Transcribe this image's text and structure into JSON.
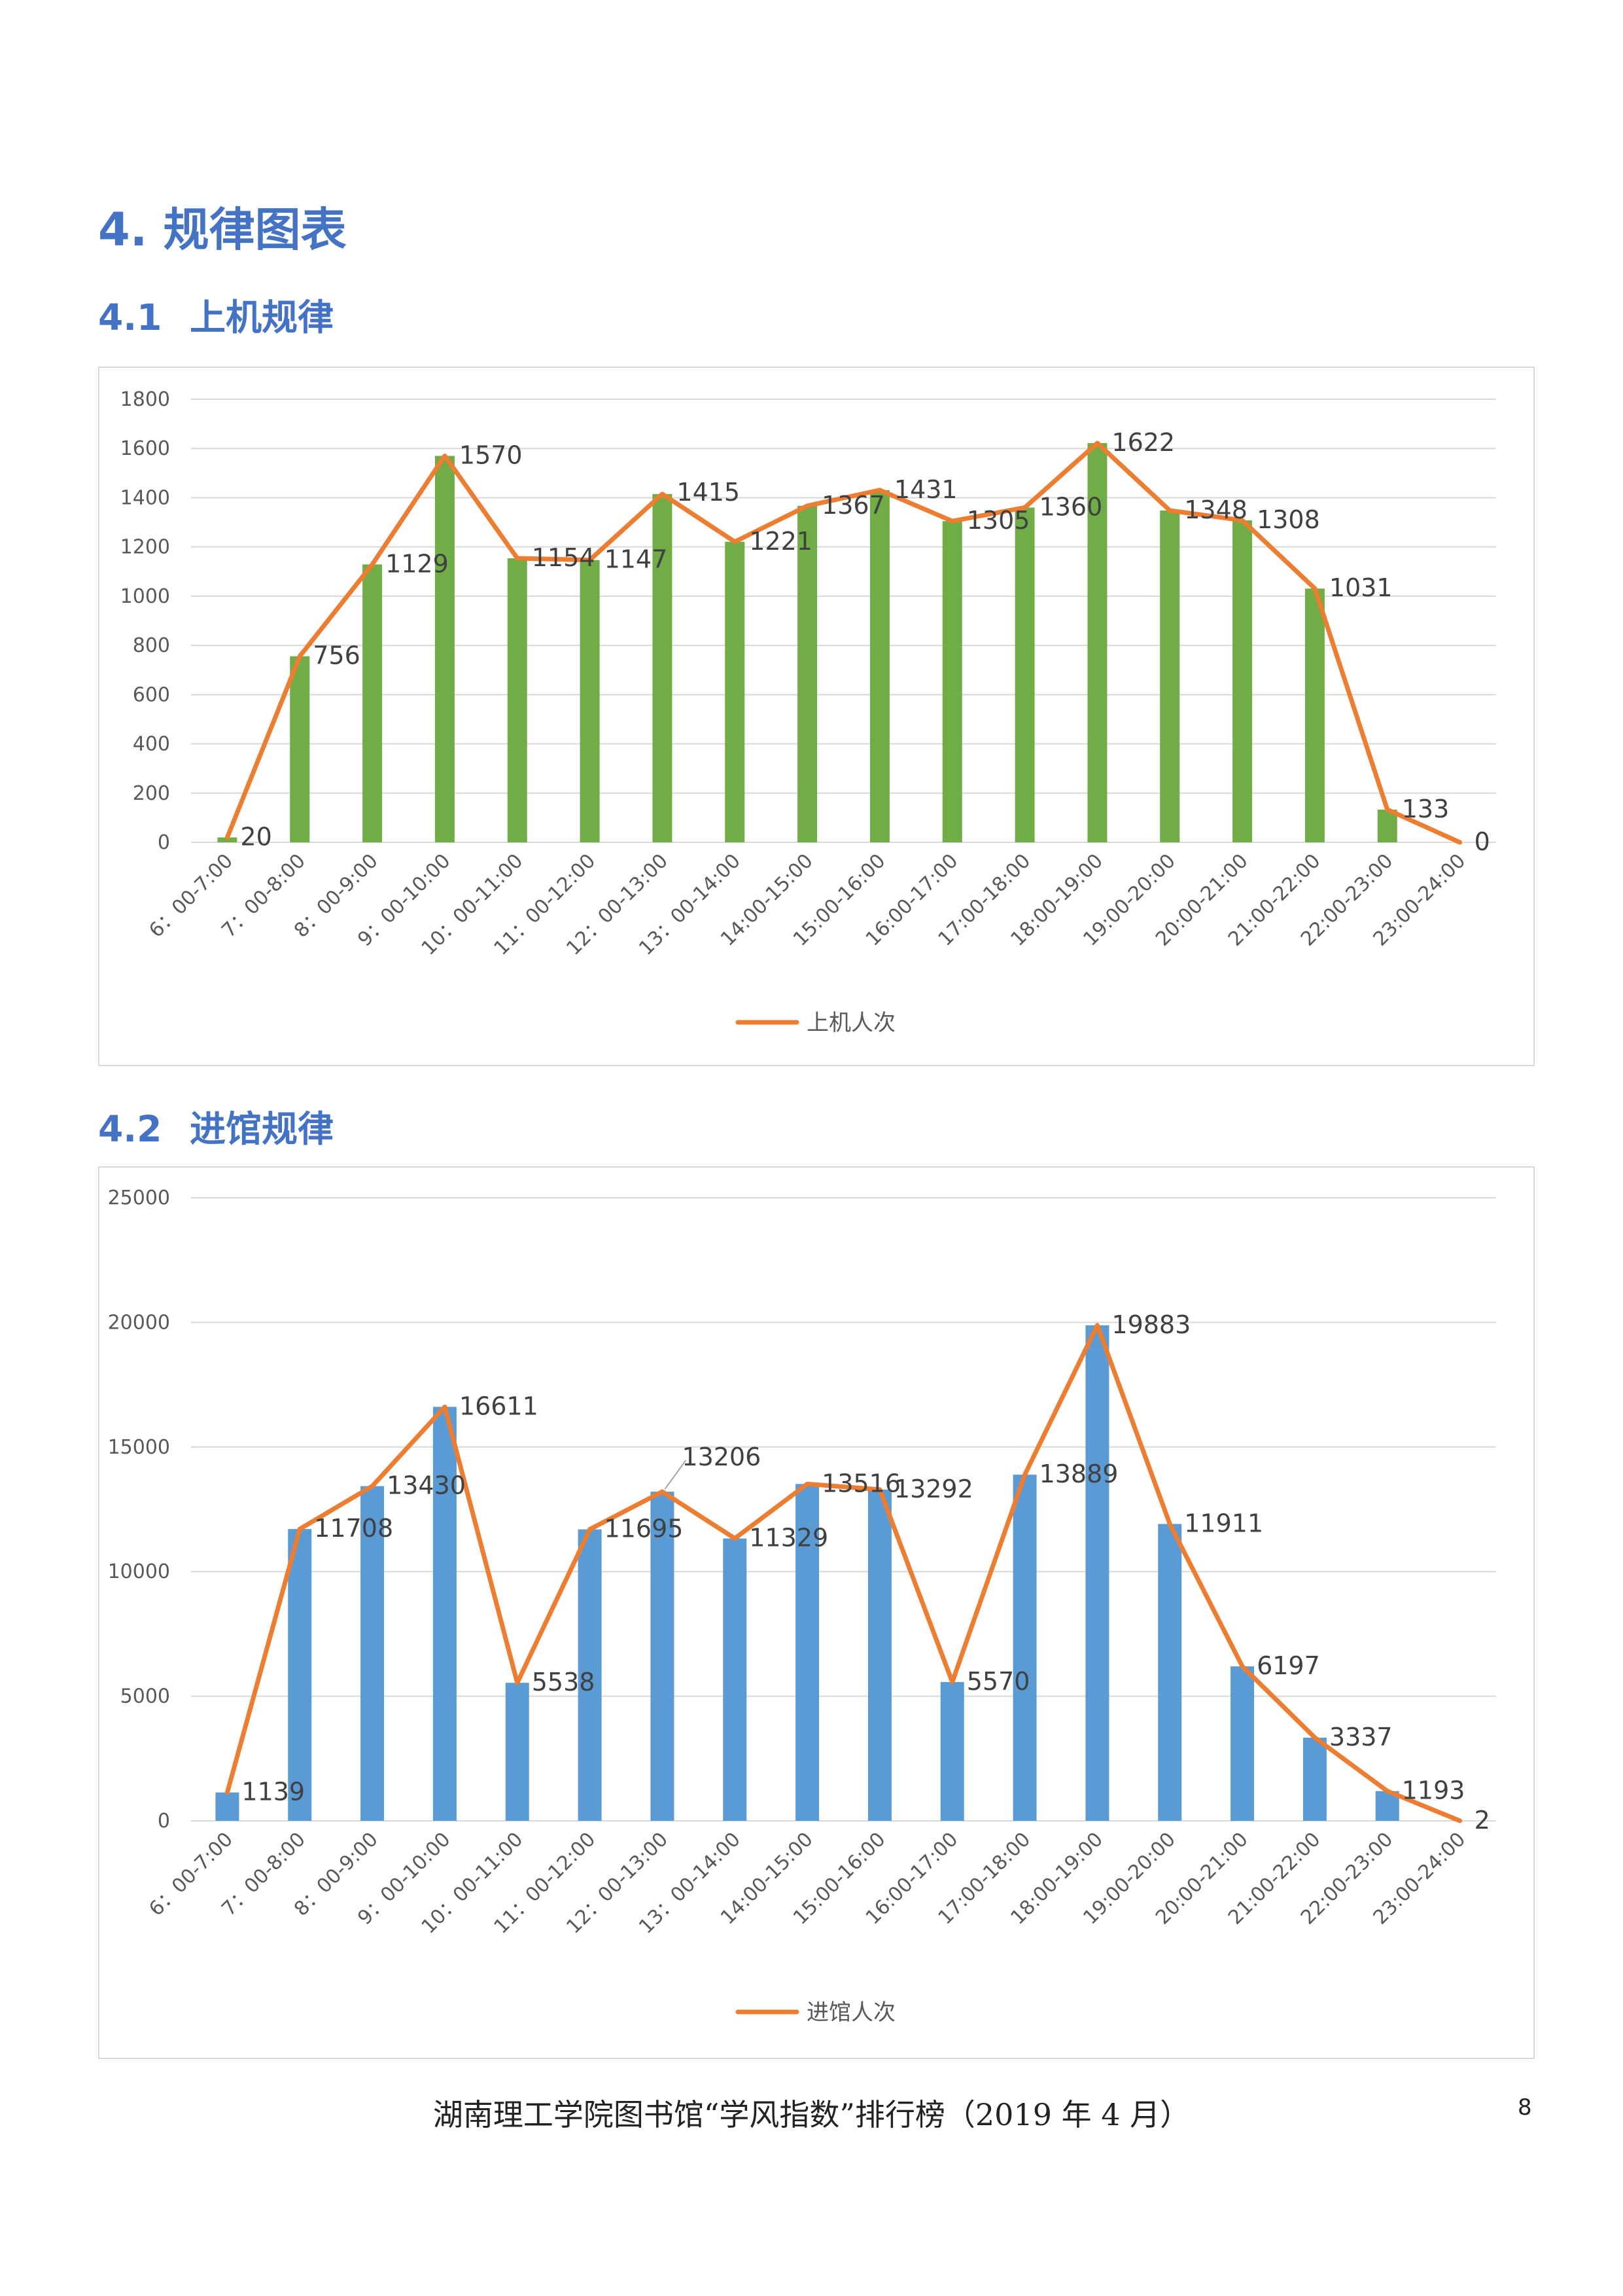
{
  "page": {
    "section_title": "4. 规律图表",
    "sub1_num": "4.1",
    "sub1_title": "上机规律",
    "sub2_num": "4.2",
    "sub2_title": "进馆规律",
    "footer": "湖南理工学院图书馆“学风指数”排行榜（2019 年 4 月）",
    "page_number": "8"
  },
  "chart_data": [
    {
      "type": "bar+line",
      "categories": [
        "6：00-7:00",
        "7：00-8:00",
        "8：00-9:00",
        "9：00-10:00",
        "10：00-11:00",
        "11：00-12:00",
        "12：00-13:00",
        "13：00-14:00",
        "14:00-15:00",
        "15:00-16:00",
        "16:00-17:00",
        "17:00-18:00",
        "18:00-19:00",
        "19:00-20:00",
        "20:00-21:00",
        "21:00-22:00",
        "22:00-23:00",
        "23:00-24:00"
      ],
      "values": [
        20,
        756,
        1129,
        1570,
        1154,
        1147,
        1415,
        1221,
        1367,
        1431,
        1305,
        1360,
        1622,
        1348,
        1308,
        1031,
        133,
        0
      ],
      "data_labels": [
        "20",
        "756",
        "1129",
        "1570",
        "1154",
        "1147",
        "1415",
        "1221",
        "1367",
        "1431",
        "1305",
        "1360",
        "1622",
        "1348",
        "1308",
        "1031",
        "133",
        "0"
      ],
      "series_name": "上机人次",
      "ylim": [
        0,
        1800
      ],
      "yticks": [
        0,
        200,
        400,
        600,
        800,
        1000,
        1200,
        1400,
        1600,
        1800
      ],
      "bar_color": "#70ad47",
      "line_color": "#ed7d31",
      "grid": true,
      "legend": "bottom"
    },
    {
      "type": "bar+line",
      "categories": [
        "6：00-7:00",
        "7：00-8:00",
        "8：00-9:00",
        "9：00-10:00",
        "10：00-11:00",
        "11：00-12:00",
        "12：00-13:00",
        "13：00-14:00",
        "14:00-15:00",
        "15:00-16:00",
        "16:00-17:00",
        "17:00-18:00",
        "18:00-19:00",
        "19:00-20:00",
        "20:00-21:00",
        "21:00-22:00",
        "22:00-23:00",
        "23:00-24:00"
      ],
      "values": [
        1139,
        11708,
        13430,
        16611,
        5538,
        11695,
        13206,
        11329,
        13516,
        13292,
        5570,
        13889,
        19883,
        11911,
        6197,
        3337,
        1193,
        2
      ],
      "data_labels": [
        "1139",
        "11708",
        "13430",
        "16611",
        "5538",
        "11695",
        "13206",
        "11329",
        "13516",
        "13292",
        "5570",
        "13889",
        "19883",
        "11911",
        "6197",
        "3337",
        "1193",
        "2"
      ],
      "series_name": "进馆人次",
      "ylim": [
        0,
        25000
      ],
      "yticks": [
        0,
        5000,
        10000,
        15000,
        20000,
        25000
      ],
      "bar_color": "#5b9bd5",
      "line_color": "#ed7d31",
      "grid": true,
      "legend": "bottom"
    }
  ]
}
